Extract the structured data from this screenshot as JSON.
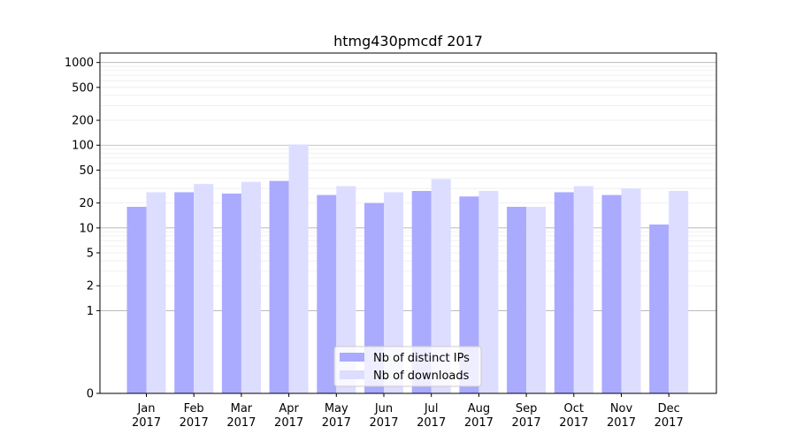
{
  "chart_data": {
    "type": "bar",
    "title": "htmg430pmcdf 2017",
    "xlabel": "",
    "ylabel": "",
    "yscale": "symlog",
    "ylim": [
      0,
      1300
    ],
    "yticks": [
      0,
      1,
      2,
      5,
      10,
      20,
      50,
      100,
      200,
      500,
      1000
    ],
    "grid": "horizontal",
    "legend_position": "bottom-center",
    "categories": [
      "Jan\n2017",
      "Feb\n2017",
      "Mar\n2017",
      "Apr\n2017",
      "May\n2017",
      "Jun\n2017",
      "Jul\n2017",
      "Aug\n2017",
      "Sep\n2017",
      "Oct\n2017",
      "Nov\n2017",
      "Dec\n2017"
    ],
    "series": [
      {
        "name": "Nb of distinct IPs",
        "color": "#aaaaff",
        "values": [
          18,
          27,
          26,
          37,
          25,
          20,
          28,
          24,
          18,
          27,
          25,
          11
        ]
      },
      {
        "name": "Nb of downloads",
        "color": "#ddddff",
        "values": [
          27,
          34,
          36,
          102,
          32,
          27,
          39,
          28,
          18,
          32,
          30,
          28
        ]
      }
    ]
  }
}
